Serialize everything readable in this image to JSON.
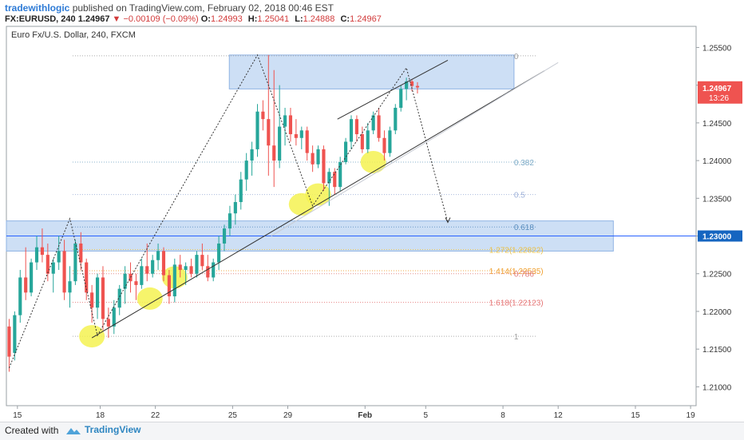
{
  "header": {
    "author": "tradewithlogic",
    "published": "published on TradingView.com, February 02, 2018 00:46 EST",
    "symbol": "FX:EURUSD, 240",
    "last": "1.24967",
    "change": "▼ −0.00109 (−0.09%)",
    "open_label": "O:",
    "open": "1.24993",
    "high_label": "H:",
    "high": "1.25041",
    "low_label": "L:",
    "low": "1.24888",
    "close_label": "C:",
    "close": "1.24967"
  },
  "footer": {
    "created": "Created with",
    "brand": "TradingView"
  },
  "colors": {
    "up": "#26a69a",
    "down": "#ef5350",
    "zone": "#bcd4f2",
    "h_line": "#2962ff",
    "highlight": "#f5f251",
    "price_tag": "#ef5350",
    "level_tag": "#1565c0"
  },
  "chart_data": {
    "type": "candlestick",
    "title": "Euro Fx/U.S. Dollar, 240, FXCM",
    "ylim": [
      1.2075,
      1.2578
    ],
    "xlim": [
      0,
      125
    ],
    "x_ticks": [
      {
        "x": 2,
        "label": "15"
      },
      {
        "x": 17,
        "label": "18"
      },
      {
        "x": 27,
        "label": "22"
      },
      {
        "x": 41,
        "label": "25"
      },
      {
        "x": 51,
        "label": "29"
      },
      {
        "x": 65,
        "label": "Feb"
      },
      {
        "x": 76,
        "label": "5"
      },
      {
        "x": 90,
        "label": "8"
      },
      {
        "x": 100,
        "label": "12"
      },
      {
        "x": 114,
        "label": "15"
      },
      {
        "x": 124,
        "label": "19"
      }
    ],
    "y_ticks": [
      "1.25500",
      "1.25000",
      "1.24500",
      "1.24000",
      "1.23500",
      "1.23000",
      "1.22500",
      "1.22000",
      "1.21500",
      "1.21000"
    ],
    "last_price": {
      "value": "1.24967",
      "countdown": "13:26",
      "y": 1.24967
    },
    "level_line": {
      "value": "1.23000",
      "y": 1.23
    },
    "candles": [
      {
        "x": 0.5,
        "o": 1.218,
        "h": 1.219,
        "l": 1.212,
        "c": 1.214
      },
      {
        "x": 1.5,
        "o": 1.2145,
        "h": 1.22,
        "l": 1.2135,
        "c": 1.2195
      },
      {
        "x": 2.5,
        "o": 1.2195,
        "h": 1.2255,
        "l": 1.2185,
        "c": 1.2245
      },
      {
        "x": 3.5,
        "o": 1.2245,
        "h": 1.2285,
        "l": 1.2215,
        "c": 1.2225
      },
      {
        "x": 4.5,
        "o": 1.2225,
        "h": 1.227,
        "l": 1.222,
        "c": 1.2265
      },
      {
        "x": 5.5,
        "o": 1.2265,
        "h": 1.23,
        "l": 1.2255,
        "c": 1.2285
      },
      {
        "x": 6.5,
        "o": 1.2285,
        "h": 1.231,
        "l": 1.2265,
        "c": 1.2275
      },
      {
        "x": 7.5,
        "o": 1.2275,
        "h": 1.229,
        "l": 1.224,
        "c": 1.225
      },
      {
        "x": 8.5,
        "o": 1.225,
        "h": 1.227,
        "l": 1.2225,
        "c": 1.2265
      },
      {
        "x": 9.5,
        "o": 1.2265,
        "h": 1.23,
        "l": 1.2255,
        "c": 1.228
      },
      {
        "x": 10.5,
        "o": 1.228,
        "h": 1.2295,
        "l": 1.2215,
        "c": 1.2225
      },
      {
        "x": 11.5,
        "o": 1.2225,
        "h": 1.226,
        "l": 1.2205,
        "c": 1.224
      },
      {
        "x": 12.5,
        "o": 1.224,
        "h": 1.2295,
        "l": 1.2235,
        "c": 1.229
      },
      {
        "x": 13.5,
        "o": 1.229,
        "h": 1.2305,
        "l": 1.2255,
        "c": 1.2265
      },
      {
        "x": 14.5,
        "o": 1.2265,
        "h": 1.227,
        "l": 1.2215,
        "c": 1.2225
      },
      {
        "x": 15.5,
        "o": 1.2225,
        "h": 1.2235,
        "l": 1.2185,
        "c": 1.2205
      },
      {
        "x": 16.5,
        "o": 1.2205,
        "h": 1.225,
        "l": 1.219,
        "c": 1.2245
      },
      {
        "x": 17.5,
        "o": 1.2245,
        "h": 1.226,
        "l": 1.2175,
        "c": 1.219
      },
      {
        "x": 18.5,
        "o": 1.219,
        "h": 1.2205,
        "l": 1.2165,
        "c": 1.218
      },
      {
        "x": 19.5,
        "o": 1.218,
        "h": 1.2215,
        "l": 1.217,
        "c": 1.2205
      },
      {
        "x": 20.5,
        "o": 1.2205,
        "h": 1.2235,
        "l": 1.2195,
        "c": 1.223
      },
      {
        "x": 21.5,
        "o": 1.223,
        "h": 1.226,
        "l": 1.221,
        "c": 1.225
      },
      {
        "x": 22.5,
        "o": 1.225,
        "h": 1.2265,
        "l": 1.2225,
        "c": 1.224
      },
      {
        "x": 23.5,
        "o": 1.224,
        "h": 1.225,
        "l": 1.2215,
        "c": 1.2235
      },
      {
        "x": 24.5,
        "o": 1.2235,
        "h": 1.227,
        "l": 1.223,
        "c": 1.226
      },
      {
        "x": 25.5,
        "o": 1.226,
        "h": 1.229,
        "l": 1.224,
        "c": 1.225
      },
      {
        "x": 26.5,
        "o": 1.225,
        "h": 1.2275,
        "l": 1.2245,
        "c": 1.2268
      },
      {
        "x": 27.5,
        "o": 1.2268,
        "h": 1.229,
        "l": 1.2255,
        "c": 1.228
      },
      {
        "x": 28.5,
        "o": 1.228,
        "h": 1.2285,
        "l": 1.224,
        "c": 1.2248
      },
      {
        "x": 29.5,
        "o": 1.2248,
        "h": 1.2255,
        "l": 1.221,
        "c": 1.222
      },
      {
        "x": 30.5,
        "o": 1.222,
        "h": 1.227,
        "l": 1.2212,
        "c": 1.2262
      },
      {
        "x": 31.5,
        "o": 1.2262,
        "h": 1.2275,
        "l": 1.2245,
        "c": 1.2255
      },
      {
        "x": 32.5,
        "o": 1.2255,
        "h": 1.2265,
        "l": 1.2235,
        "c": 1.226
      },
      {
        "x": 33.5,
        "o": 1.226,
        "h": 1.227,
        "l": 1.2245,
        "c": 1.225
      },
      {
        "x": 34.5,
        "o": 1.225,
        "h": 1.228,
        "l": 1.2245,
        "c": 1.2275
      },
      {
        "x": 35.5,
        "o": 1.2275,
        "h": 1.229,
        "l": 1.2255,
        "c": 1.226
      },
      {
        "x": 36.5,
        "o": 1.226,
        "h": 1.2275,
        "l": 1.224,
        "c": 1.2245
      },
      {
        "x": 37.5,
        "o": 1.2245,
        "h": 1.227,
        "l": 1.224,
        "c": 1.2265
      },
      {
        "x": 38.5,
        "o": 1.2265,
        "h": 1.23,
        "l": 1.2255,
        "c": 1.229
      },
      {
        "x": 39.5,
        "o": 1.229,
        "h": 1.2315,
        "l": 1.228,
        "c": 1.231
      },
      {
        "x": 40.5,
        "o": 1.231,
        "h": 1.234,
        "l": 1.23,
        "c": 1.233
      },
      {
        "x": 41.5,
        "o": 1.233,
        "h": 1.2355,
        "l": 1.2315,
        "c": 1.2345
      },
      {
        "x": 42.5,
        "o": 1.2345,
        "h": 1.2385,
        "l": 1.2335,
        "c": 1.2375
      },
      {
        "x": 43.5,
        "o": 1.2375,
        "h": 1.241,
        "l": 1.236,
        "c": 1.24
      },
      {
        "x": 44.5,
        "o": 1.24,
        "h": 1.2425,
        "l": 1.238,
        "c": 1.2415
      },
      {
        "x": 45.5,
        "o": 1.2415,
        "h": 1.2475,
        "l": 1.2405,
        "c": 1.2465
      },
      {
        "x": 46.5,
        "o": 1.2465,
        "h": 1.248,
        "l": 1.244,
        "c": 1.2455
      },
      {
        "x": 47.5,
        "o": 1.2455,
        "h": 1.254,
        "l": 1.238,
        "c": 1.242
      },
      {
        "x": 48.5,
        "o": 1.242,
        "h": 1.252,
        "l": 1.2365,
        "c": 1.24
      },
      {
        "x": 49.5,
        "o": 1.24,
        "h": 1.25,
        "l": 1.239,
        "c": 1.2445
      },
      {
        "x": 50.5,
        "o": 1.2445,
        "h": 1.247,
        "l": 1.242,
        "c": 1.246
      },
      {
        "x": 51.5,
        "o": 1.246,
        "h": 1.247,
        "l": 1.2425,
        "c": 1.2435
      },
      {
        "x": 52.5,
        "o": 1.2435,
        "h": 1.2455,
        "l": 1.242,
        "c": 1.243
      },
      {
        "x": 53.5,
        "o": 1.243,
        "h": 1.2445,
        "l": 1.2415,
        "c": 1.244
      },
      {
        "x": 54.5,
        "o": 1.244,
        "h": 1.2445,
        "l": 1.24,
        "c": 1.241
      },
      {
        "x": 55.5,
        "o": 1.241,
        "h": 1.242,
        "l": 1.2385,
        "c": 1.2395
      },
      {
        "x": 56.5,
        "o": 1.2395,
        "h": 1.242,
        "l": 1.239,
        "c": 1.2415
      },
      {
        "x": 57.5,
        "o": 1.2415,
        "h": 1.242,
        "l": 1.236,
        "c": 1.237
      },
      {
        "x": 58.5,
        "o": 1.237,
        "h": 1.239,
        "l": 1.234,
        "c": 1.2385
      },
      {
        "x": 59.5,
        "o": 1.2385,
        "h": 1.239,
        "l": 1.2355,
        "c": 1.2365
      },
      {
        "x": 60.5,
        "o": 1.2365,
        "h": 1.2405,
        "l": 1.236,
        "c": 1.2398
      },
      {
        "x": 61.5,
        "o": 1.2398,
        "h": 1.243,
        "l": 1.2395,
        "c": 1.2425
      },
      {
        "x": 62.5,
        "o": 1.2425,
        "h": 1.246,
        "l": 1.2415,
        "c": 1.2455
      },
      {
        "x": 63.5,
        "o": 1.2455,
        "h": 1.246,
        "l": 1.2425,
        "c": 1.2435
      },
      {
        "x": 64.5,
        "o": 1.2435,
        "h": 1.2445,
        "l": 1.241,
        "c": 1.2415
      },
      {
        "x": 65.5,
        "o": 1.2415,
        "h": 1.245,
        "l": 1.241,
        "c": 1.244
      },
      {
        "x": 66.5,
        "o": 1.244,
        "h": 1.2465,
        "l": 1.2435,
        "c": 1.246
      },
      {
        "x": 67.5,
        "o": 1.246,
        "h": 1.247,
        "l": 1.2425,
        "c": 1.243
      },
      {
        "x": 68.5,
        "o": 1.243,
        "h": 1.244,
        "l": 1.24,
        "c": 1.241
      },
      {
        "x": 69.5,
        "o": 1.241,
        "h": 1.2445,
        "l": 1.2405,
        "c": 1.244
      },
      {
        "x": 70.5,
        "o": 1.244,
        "h": 1.2475,
        "l": 1.2435,
        "c": 1.247
      },
      {
        "x": 71.5,
        "o": 1.247,
        "h": 1.25,
        "l": 1.2465,
        "c": 1.2495
      },
      {
        "x": 72.5,
        "o": 1.2495,
        "h": 1.251,
        "l": 1.248,
        "c": 1.2505
      },
      {
        "x": 73.5,
        "o": 1.2505,
        "h": 1.2508,
        "l": 1.2492,
        "c": 1.2499
      },
      {
        "x": 74.5,
        "o": 1.2499,
        "h": 1.2504,
        "l": 1.2489,
        "c": 1.2497
      }
    ],
    "zones": [
      {
        "x0": 40.4,
        "x1": 92,
        "y0": 1.2495,
        "y1": 1.254
      },
      {
        "x0": 0,
        "x1": 110,
        "y0": 1.228,
        "y1": 1.232
      }
    ],
    "fib_levels": [
      {
        "label": "0",
        "y": 1.2539,
        "color": "#9e9e9e"
      },
      {
        "label": "0.382",
        "y": 1.2398,
        "color": "#7aa9c6"
      },
      {
        "label": "0.5",
        "y": 1.2355,
        "color": "#9db0d8"
      },
      {
        "label": "0.618",
        "y": 1.2312,
        "color": "#5c8fbf"
      },
      {
        "label": "1.272(1.22822)",
        "y": 1.2282,
        "color": "#e8c04a"
      },
      {
        "label": "1.414(1.22535)",
        "y": 1.2254,
        "color": "#f0a030"
      },
      {
        "label": "0.786",
        "y": 1.225,
        "color": "#e07b7b"
      },
      {
        "label": "1.618(1.22123)",
        "y": 1.2212,
        "color": "#e57373"
      },
      {
        "label": "1",
        "y": 1.2167,
        "color": "#9e9e9e"
      }
    ],
    "zigzag": [
      [
        0.5,
        1.2125
      ],
      [
        11.5,
        1.2323
      ],
      [
        16.5,
        1.2168
      ],
      [
        45.5,
        1.254
      ],
      [
        55.5,
        1.234
      ],
      [
        72.5,
        1.2523
      ],
      [
        80,
        1.2318
      ]
    ],
    "zigzag_left": [
      [
        0.5,
        1.2125
      ],
      [
        11.5,
        1.2323
      ],
      [
        16.5,
        1.2168
      ]
    ],
    "trend_lines": [
      {
        "x0": 15.5,
        "y0": 1.2165,
        "x1": 97.5,
        "y1": 1.2519,
        "style": "solid"
      },
      {
        "x0": 60,
        "y0": 1.2455,
        "x1": 80,
        "y1": 1.2533,
        "style": "solid"
      },
      {
        "x0": 48,
        "y0": 1.23,
        "x1": 100,
        "y1": 1.253,
        "style": "faint"
      }
    ],
    "highlights": [
      {
        "x": 15.5,
        "y": 1.2167,
        "rx": 16,
        "ry": 14
      },
      {
        "x": 26,
        "y": 1.2217,
        "rx": 16,
        "ry": 14
      },
      {
        "x": 30.5,
        "y": 1.2245,
        "rx": 16,
        "ry": 14
      },
      {
        "x": 53.5,
        "y": 1.2342,
        "rx": 16,
        "ry": 14
      },
      {
        "x": 56.5,
        "y": 1.2355,
        "rx": 16,
        "ry": 14
      },
      {
        "x": 66.5,
        "y": 1.2398,
        "rx": 16,
        "ry": 14
      }
    ]
  }
}
